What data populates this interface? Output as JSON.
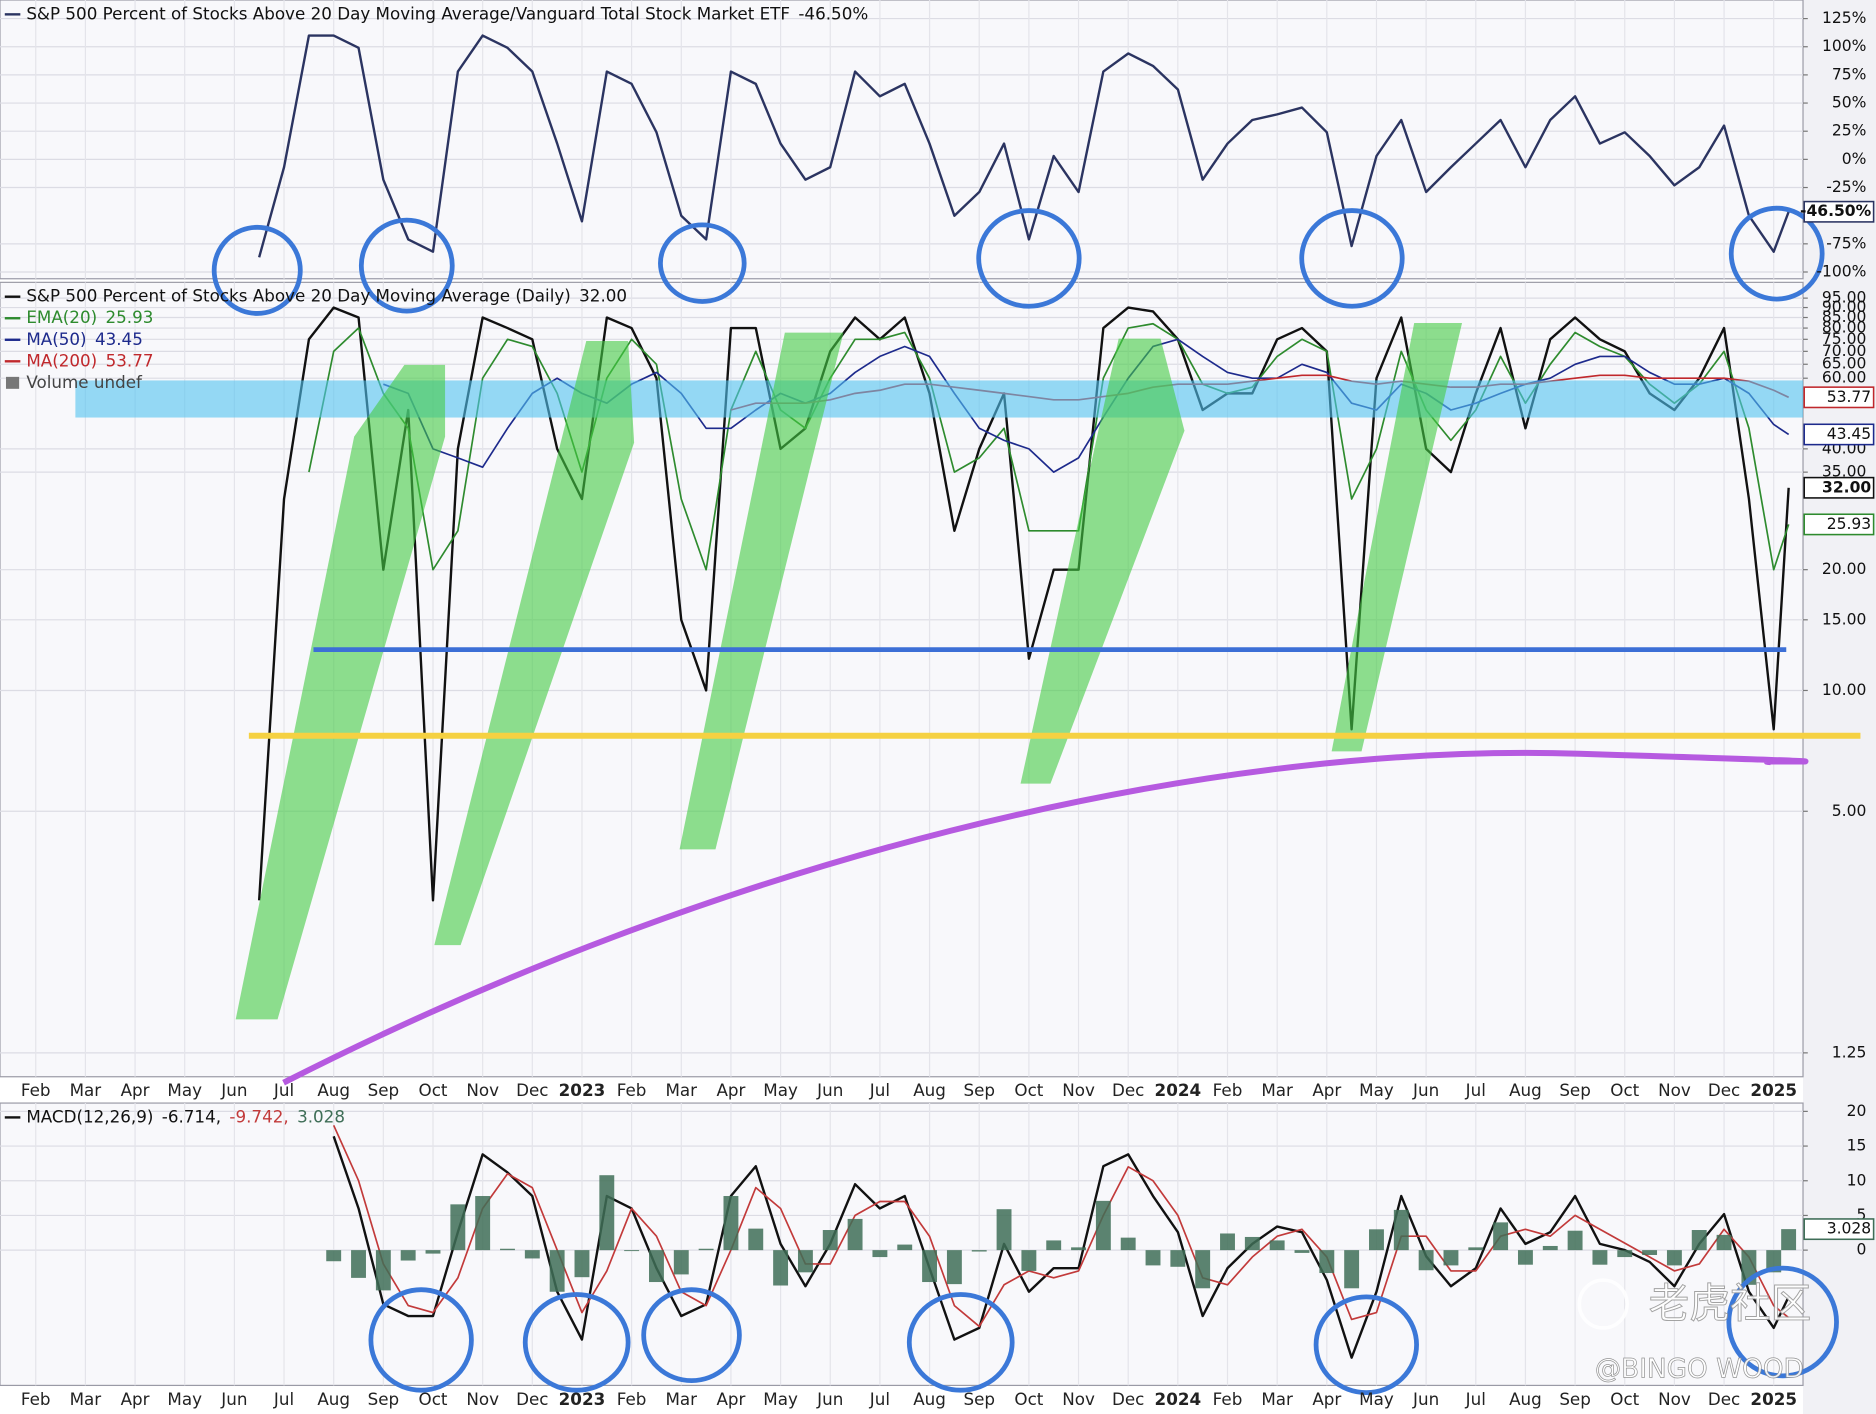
{
  "chart_data": [
    {
      "type": "line",
      "x": [
        5.5,
        6,
        6.5,
        7,
        7.5,
        8,
        8.5,
        9,
        9.5,
        10,
        10.5,
        11,
        11.5,
        12,
        12.5,
        13,
        13.5,
        14,
        14.5,
        15,
        15.5,
        16,
        16.5,
        17,
        17.5,
        18,
        18.5,
        19,
        19.5,
        20,
        20.5,
        21,
        21.5,
        22,
        22.5,
        23,
        23.5,
        24,
        24.5,
        25,
        25.5,
        26,
        26.5,
        27,
        27.5,
        28,
        28.5,
        29,
        29.5,
        30,
        30.5,
        31,
        31.5,
        32,
        32.5,
        33,
        33.5,
        34,
        34.5,
        35,
        35.5,
        36,
        36.3
      ],
      "series": [
        {
          "name": "S&P 500 Percent of Stocks Above 20 Day Moving Average/Vanguard Total Stock Market ETF",
          "color": "#2b3461",
          "last_label": "-46.50%",
          "values": [
            -87,
            -7,
            110,
            110,
            99,
            -18,
            -71,
            -82,
            78,
            110,
            99,
            78,
            14,
            -55,
            78,
            67,
            24,
            -50,
            -71,
            78,
            67,
            14,
            -18,
            -7,
            78,
            56,
            67,
            14,
            -50,
            -29,
            14,
            -71,
            3,
            -29,
            78,
            94,
            83,
            62,
            -18,
            14,
            35,
            40,
            46,
            24,
            -77,
            3,
            35,
            -29,
            -7,
            14,
            35,
            -7,
            35,
            56,
            14,
            24,
            3,
            -23,
            -7,
            30,
            -50,
            -82,
            -46.5
          ]
        }
      ],
      "xlim": [
        0.28,
        36.59
      ],
      "ylim": [
        -106,
        141.5
      ],
      "yticks": [
        {
          "value": 125,
          "label": "125%"
        },
        {
          "value": 100,
          "label": "100%"
        },
        {
          "value": 75,
          "label": "75%"
        },
        {
          "value": 50,
          "label": "50%"
        },
        {
          "value": 25,
          "label": "25%"
        },
        {
          "value": 0,
          "label": "0%"
        },
        {
          "value": -25,
          "label": "-25%"
        },
        {
          "value": -75,
          "label": "-75%"
        },
        {
          "value": -100,
          "label": "-100%"
        }
      ],
      "grid": true
    },
    {
      "type": "line",
      "log_scale": true,
      "x": [
        5.5,
        6,
        6.5,
        7,
        7.5,
        8,
        8.5,
        9,
        9.5,
        10,
        10.5,
        11,
        11.5,
        12,
        12.5,
        13,
        13.5,
        14,
        14.5,
        15,
        15.5,
        16,
        16.5,
        17,
        17.5,
        18,
        18.5,
        19,
        19.5,
        20,
        20.5,
        21,
        21.5,
        22,
        22.5,
        23,
        23.5,
        24,
        24.5,
        25,
        25.5,
        26,
        26.5,
        27,
        27.5,
        28,
        28.5,
        29,
        29.5,
        30,
        30.5,
        31,
        31.5,
        32,
        32.5,
        33,
        33.5,
        34,
        34.5,
        35,
        35.5,
        36,
        36.3
      ],
      "series": [
        {
          "name": "S&P 500 Percent of Stocks Above 20 Day Moving Average (Daily)",
          "color": "#111111",
          "last_label": "32.00",
          "values": [
            3,
            30,
            75,
            90,
            85,
            20,
            50,
            3,
            40,
            85,
            80,
            75,
            40,
            30,
            85,
            80,
            60,
            15,
            10,
            80,
            80,
            40,
            45,
            70,
            85,
            75,
            85,
            55,
            25,
            40,
            55,
            12,
            20,
            20,
            80,
            90,
            88,
            75,
            50,
            55,
            55,
            75,
            80,
            70,
            8,
            60,
            85,
            40,
            35,
            55,
            80,
            45,
            75,
            85,
            75,
            70,
            55,
            50,
            60,
            80,
            30,
            8,
            32
          ]
        },
        {
          "name": "EMA(20)",
          "color": "#2e8b2e",
          "last_label": "25.93",
          "values": [
            null,
            null,
            35,
            70,
            80,
            55,
            45,
            20,
            25,
            60,
            75,
            72,
            55,
            35,
            60,
            75,
            65,
            30,
            20,
            50,
            70,
            50,
            45,
            60,
            75,
            75,
            78,
            60,
            35,
            38,
            45,
            25,
            25,
            25,
            60,
            80,
            82,
            75,
            58,
            55,
            57,
            68,
            75,
            70,
            30,
            40,
            70,
            50,
            42,
            50,
            68,
            52,
            65,
            78,
            72,
            68,
            58,
            52,
            58,
            70,
            45,
            20,
            25.93
          ]
        },
        {
          "name": "MA(50)",
          "color": "#1d2a8c",
          "last_label": "43.45",
          "values": [
            null,
            null,
            null,
            null,
            null,
            58,
            55,
            40,
            38,
            36,
            45,
            55,
            60,
            55,
            52,
            58,
            62,
            55,
            45,
            45,
            50,
            55,
            52,
            55,
            62,
            68,
            72,
            68,
            55,
            45,
            42,
            40,
            35,
            38,
            48,
            60,
            72,
            75,
            68,
            62,
            60,
            60,
            65,
            62,
            52,
            50,
            58,
            55,
            50,
            52,
            55,
            58,
            60,
            65,
            68,
            68,
            62,
            58,
            58,
            60,
            55,
            46,
            43.45
          ]
        },
        {
          "name": "MA(200)",
          "color": "#c0282c",
          "last_label": "53.77",
          "values": [
            null,
            null,
            null,
            null,
            null,
            null,
            null,
            null,
            null,
            null,
            null,
            null,
            null,
            null,
            null,
            null,
            null,
            null,
            null,
            50,
            52,
            52,
            52,
            53,
            55,
            56,
            58,
            58,
            57,
            56,
            55,
            54,
            53,
            53,
            54,
            55,
            57,
            58,
            58,
            58,
            59,
            60,
            61,
            61,
            59,
            58,
            59,
            58,
            57,
            57,
            58,
            58,
            59,
            60,
            61,
            61,
            60,
            60,
            60,
            60,
            59,
            56,
            53.77
          ]
        }
      ],
      "volume_label": "Volume undef",
      "xlim": [
        0.28,
        36.59
      ],
      "ylim": [
        1.09,
        104
      ],
      "yticks": [
        {
          "value": 95,
          "label": "95.00"
        },
        {
          "value": 90,
          "label": "90.00"
        },
        {
          "value": 85,
          "label": "85.00"
        },
        {
          "value": 80,
          "label": "80.00"
        },
        {
          "value": 75,
          "label": "75.00"
        },
        {
          "value": 70,
          "label": "70.00"
        },
        {
          "value": 65,
          "label": "65.00"
        },
        {
          "value": 60,
          "label": "60.00"
        },
        {
          "value": 40,
          "label": "40.00"
        },
        {
          "value": 35,
          "label": "35.00"
        },
        {
          "value": 20,
          "label": "20.00"
        },
        {
          "value": 15,
          "label": "15.00"
        },
        {
          "value": 10,
          "label": "10.00"
        },
        {
          "value": 5,
          "label": "5.00"
        },
        {
          "value": 1.25,
          "label": "1.25"
        }
      ],
      "xticks": [
        {
          "value": 1,
          "label": "Feb"
        },
        {
          "value": 2,
          "label": "Mar"
        },
        {
          "value": 3,
          "label": "Apr"
        },
        {
          "value": 4,
          "label": "May"
        },
        {
          "value": 5,
          "label": "Jun"
        },
        {
          "value": 6,
          "label": "Jul"
        },
        {
          "value": 7,
          "label": "Aug"
        },
        {
          "value": 8,
          "label": "Sep"
        },
        {
          "value": 9,
          "label": "Oct"
        },
        {
          "value": 10,
          "label": "Nov"
        },
        {
          "value": 11,
          "label": "Dec"
        },
        {
          "value": 12,
          "label": "2023"
        },
        {
          "value": 13,
          "label": "Feb"
        },
        {
          "value": 14,
          "label": "Mar"
        },
        {
          "value": 15,
          "label": "Apr"
        },
        {
          "value": 16,
          "label": "May"
        },
        {
          "value": 17,
          "label": "Jun"
        },
        {
          "value": 18,
          "label": "Jul"
        },
        {
          "value": 19,
          "label": "Aug"
        },
        {
          "value": 20,
          "label": "Sep"
        },
        {
          "value": 21,
          "label": "Oct"
        },
        {
          "value": 22,
          "label": "Nov"
        },
        {
          "value": 23,
          "label": "Dec"
        },
        {
          "value": 24,
          "label": "2024"
        },
        {
          "value": 25,
          "label": "Feb"
        },
        {
          "value": 26,
          "label": "Mar"
        },
        {
          "value": 27,
          "label": "Apr"
        },
        {
          "value": 28,
          "label": "May"
        },
        {
          "value": 29,
          "label": "Jun"
        },
        {
          "value": 30,
          "label": "Jul"
        },
        {
          "value": 31,
          "label": "Aug"
        },
        {
          "value": 32,
          "label": "Sep"
        },
        {
          "value": 33,
          "label": "Oct"
        },
        {
          "value": 34,
          "label": "Nov"
        },
        {
          "value": 35,
          "label": "Dec"
        },
        {
          "value": 36,
          "label": "2025"
        }
      ],
      "grid": true
    },
    {
      "type": "line",
      "x": [
        5.5,
        6,
        6.5,
        7,
        7.5,
        8,
        8.5,
        9,
        9.5,
        10,
        10.5,
        11,
        11.5,
        12,
        12.5,
        13,
        13.5,
        14,
        14.5,
        15,
        15.5,
        16,
        16.5,
        17,
        17.5,
        18,
        18.5,
        19,
        19.5,
        20,
        20.5,
        21,
        21.5,
        22,
        22.5,
        23,
        23.5,
        24,
        24.5,
        25,
        25.5,
        26,
        26.5,
        27,
        27.5,
        28,
        28.5,
        29,
        29.5,
        30,
        30.5,
        31,
        31.5,
        32,
        32.5,
        33,
        33.5,
        34,
        34.5,
        35,
        35.5,
        36,
        36.3
      ],
      "series": [
        {
          "name": "MACD(12,26,9)",
          "color": "#111111",
          "legend_label": "-6.714,",
          "values": [
            null,
            null,
            null,
            16.4,
            6,
            -7.8,
            -9.5,
            -9.5,
            2.6,
            13.8,
            11.2,
            7.8,
            -6,
            -12.9,
            7.8,
            6,
            -2.6,
            -9.5,
            -7.8,
            7.8,
            12.1,
            0.9,
            -5.2,
            0.9,
            9.5,
            6,
            7.8,
            -2.6,
            -12.9,
            -11.2,
            0.9,
            -6,
            -2.6,
            -2.6,
            12.1,
            13.8,
            7.8,
            2.6,
            -9.5,
            -2.6,
            0.9,
            3.4,
            2.6,
            -4.3,
            -15.5,
            -6,
            7.8,
            -0.9,
            -5.2,
            -2.6,
            6,
            0.9,
            2.6,
            7.8,
            0.9,
            0,
            -1.7,
            -5.2,
            0.9,
            5.2,
            -6,
            -11.2,
            -6.714
          ]
        },
        {
          "color": "#c23a3a",
          "legend_label": "-9.742,",
          "values": [
            null,
            null,
            null,
            18,
            10,
            -2,
            -8,
            -9,
            -4,
            6,
            11,
            9,
            0,
            -9,
            -3,
            6,
            2,
            -6,
            -8,
            0,
            9,
            6,
            -2,
            -2,
            5,
            7,
            7,
            2,
            -8,
            -11,
            -5,
            -3,
            -4,
            -3,
            5,
            12,
            10,
            5,
            -4,
            -5,
            -1,
            2,
            3,
            -1,
            -10,
            -9,
            2,
            2,
            -3,
            -3,
            2,
            3,
            2,
            5,
            3,
            1,
            -1,
            -3,
            -2,
            3,
            -1,
            -8,
            -9.742
          ]
        },
        {
          "color": "#3f6e57",
          "mark": "bar",
          "last_label": "3.028",
          "values": [
            null,
            null,
            null,
            -1.6,
            -4,
            -5.8,
            -1.5,
            -0.5,
            6.6,
            7.8,
            0.2,
            -1.2,
            -6,
            -3.9,
            10.8,
            0,
            -4.6,
            -3.5,
            0.2,
            7.8,
            3.1,
            -5.1,
            -3.2,
            2.9,
            4.5,
            -1,
            0.8,
            -4.6,
            -4.9,
            -0.2,
            5.9,
            -3,
            1.4,
            0.4,
            7.1,
            1.8,
            -2.2,
            -2.4,
            -5.5,
            2.4,
            1.9,
            1.4,
            -0.4,
            -3.3,
            -5.5,
            3,
            5.8,
            -2.9,
            -2.2,
            0.4,
            4,
            -2.1,
            0.6,
            2.8,
            -2.1,
            -1,
            -0.7,
            -2.2,
            2.9,
            2.2,
            -5,
            -3.2,
            3.028
          ]
        }
      ],
      "xlim": [
        0.28,
        36.59
      ],
      "ylim": [
        -19.5,
        21.2
      ],
      "yticks": [
        20,
        15,
        10,
        5,
        0
      ],
      "xticks": [
        {
          "value": 1,
          "label": "Feb"
        },
        {
          "value": 2,
          "label": "Mar"
        },
        {
          "value": 3,
          "label": "Apr"
        },
        {
          "value": 4,
          "label": "May"
        },
        {
          "value": 5,
          "label": "Jun"
        },
        {
          "value": 6,
          "label": "Jul"
        },
        {
          "value": 7,
          "label": "Aug"
        },
        {
          "value": 8,
          "label": "Sep"
        },
        {
          "value": 9,
          "label": "Oct"
        },
        {
          "value": 10,
          "label": "Nov"
        },
        {
          "value": 11,
          "label": "Dec"
        },
        {
          "value": 12,
          "label": "2023"
        },
        {
          "value": 13,
          "label": "Feb"
        },
        {
          "value": 14,
          "label": "Mar"
        },
        {
          "value": 15,
          "label": "Apr"
        },
        {
          "value": 16,
          "label": "May"
        },
        {
          "value": 17,
          "label": "Jun"
        },
        {
          "value": 18,
          "label": "Jul"
        },
        {
          "value": 19,
          "label": "Aug"
        },
        {
          "value": 20,
          "label": "Sep"
        },
        {
          "value": 21,
          "label": "Oct"
        },
        {
          "value": 22,
          "label": "Nov"
        },
        {
          "value": 23,
          "label": "Dec"
        },
        {
          "value": 24,
          "label": "2024"
        },
        {
          "value": 25,
          "label": "Feb"
        },
        {
          "value": 26,
          "label": "Mar"
        },
        {
          "value": 27,
          "label": "Apr"
        },
        {
          "value": 28,
          "label": "May"
        },
        {
          "value": 29,
          "label": "Jun"
        },
        {
          "value": 30,
          "label": "Jul"
        },
        {
          "value": 31,
          "label": "Aug"
        },
        {
          "value": 32,
          "label": "Sep"
        },
        {
          "value": 33,
          "label": "Oct"
        },
        {
          "value": 34,
          "label": "Nov"
        },
        {
          "value": 35,
          "label": "Dec"
        },
        {
          "value": 36,
          "label": "2025"
        }
      ],
      "grid": true
    }
  ],
  "watermark": {
    "brand": "老虎社区",
    "author": "@BINGO WOOD"
  }
}
